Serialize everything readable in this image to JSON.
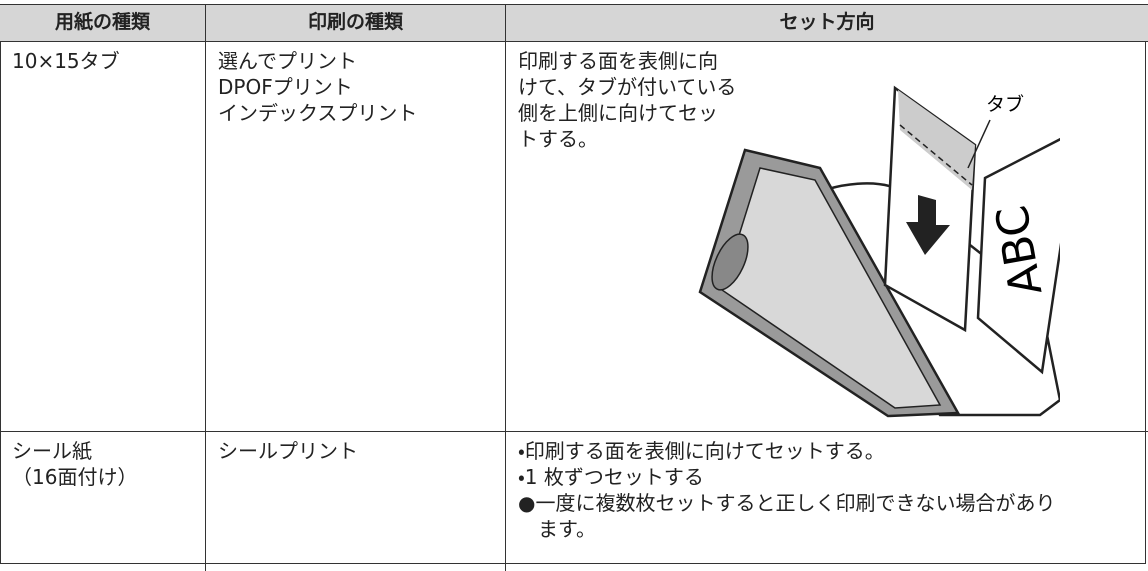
{
  "table": {
    "headers": [
      "用紙の種類",
      "印刷の種類",
      "セット方向"
    ],
    "rows": [
      [
        [
          "10×15タブ"
        ],
        [
          "選んでプリント",
          "DPOFプリント",
          "インデックスプリント"
        ],
        [
          "印刷する面を表側に向",
          "けて、タブが付いている",
          "側を上側に向けてセッ",
          "トする。"
        ]
      ],
      [
        [
          "シール紙",
          "（16面付け）"
        ],
        [
          "シールプリント"
        ],
        [
          "・印刷する面を表側に向けてセットする。",
          "・1 枚ずつセットする",
          "●一度に複数枚セットすると正しく印刷できない場合があります。"
        ]
      ]
    ]
  },
  "illustration": {
    "tab_label": "タブ",
    "sample_letters": "ABC"
  }
}
